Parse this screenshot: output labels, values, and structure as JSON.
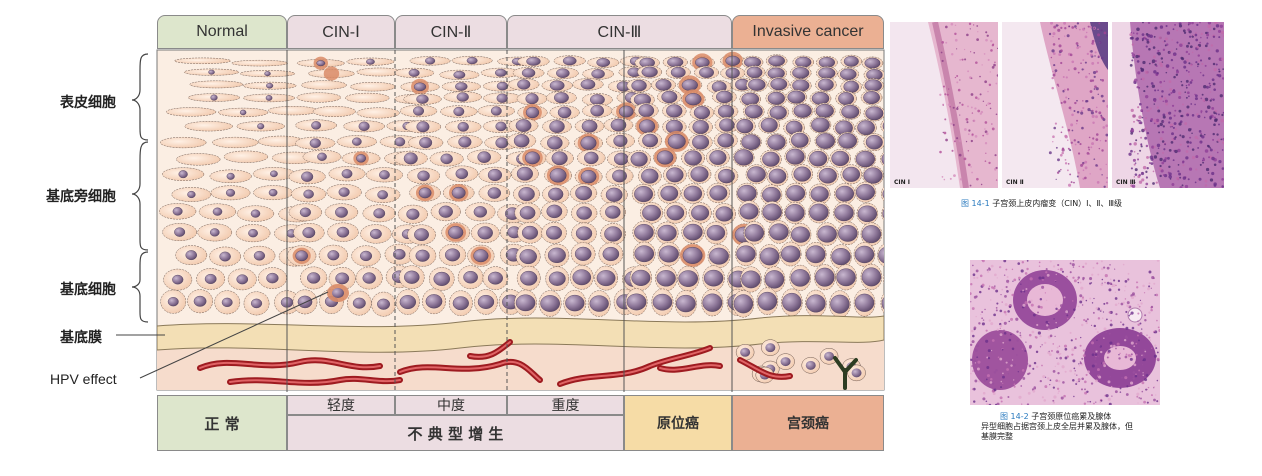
{
  "layers": {
    "epidermal": "表皮细胞",
    "parabasal": "基底旁细胞",
    "basal": "基底细胞",
    "basement_membrane": "基底膜",
    "hpv_effect": "HPV effect"
  },
  "headers": {
    "normal": "Normal",
    "cin1": "CIN-Ⅰ",
    "cin2": "CIN-Ⅱ",
    "cin3": "CIN-Ⅲ",
    "invasive": "Invasive cancer"
  },
  "footer": {
    "normal": "正 常",
    "mild": "轻度",
    "moderate": "中度",
    "severe": "重度",
    "dysplasia": "不 典 型 增 生",
    "in_situ": "原位癌",
    "cervical_cancer": "宫颈癌"
  },
  "photos": {
    "panel1": "CIN Ⅰ",
    "panel2": "CIN Ⅱ",
    "panel3": "CIN Ⅲ",
    "fig1_num": "图 14-1",
    "fig1_caption": "子宫颈上皮内瘤变（CIN）Ⅰ、Ⅱ、Ⅲ级",
    "fig2_num": "图 14-2",
    "fig2_title": "子宫颈原位癌累及腺体",
    "fig2_line1": "异型细胞占据宫颈上皮全层并累及腺体，但",
    "fig2_line2": "基膜完整"
  },
  "colors": {
    "normal": "#dde6cc",
    "cin": "#ecdde2",
    "in_situ": "#f6dca6",
    "invasive": "#ebb093",
    "cell": "#f7d7c2",
    "nucleus": "#8a7394",
    "membrane": "#f3dfb5",
    "vessel": "#9e1b20",
    "stain": "#d98b67"
  }
}
